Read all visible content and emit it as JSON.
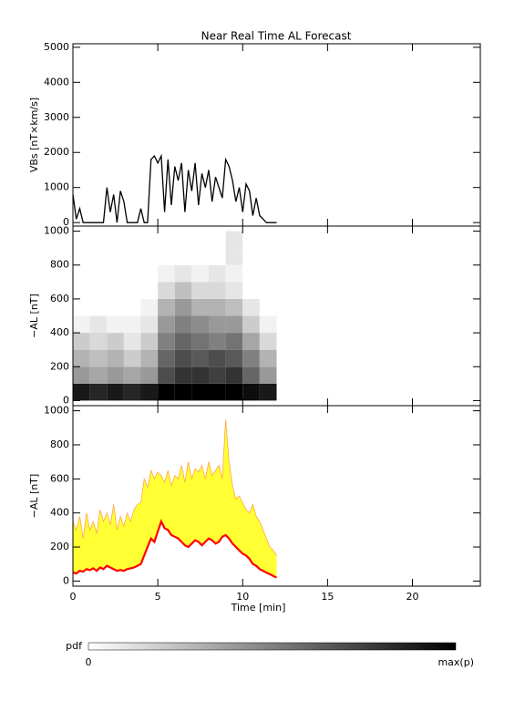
{
  "title": "Near Real Time AL Forecast",
  "chart_data": [
    {
      "type": "line",
      "ylabel": "VBs [nT×km/s]",
      "xlim": [
        0,
        24
      ],
      "xticks": [
        0,
        5,
        10,
        15,
        20
      ],
      "ylim": [
        -100,
        5100
      ],
      "yticks": [
        0,
        1000,
        2000,
        3000,
        4000,
        5000
      ],
      "x": [
        0,
        0.2,
        0.4,
        0.6,
        0.8,
        1,
        1.2,
        1.4,
        1.6,
        1.8,
        2,
        2.2,
        2.4,
        2.6,
        2.8,
        3,
        3.2,
        3.4,
        3.6,
        3.8,
        4,
        4.2,
        4.4,
        4.6,
        4.8,
        5,
        5.2,
        5.4,
        5.6,
        5.8,
        6,
        6.2,
        6.4,
        6.6,
        6.8,
        7,
        7.2,
        7.4,
        7.6,
        7.8,
        8,
        8.2,
        8.4,
        8.6,
        8.8,
        9,
        9.2,
        9.4,
        9.6,
        9.8,
        10,
        10.2,
        10.4,
        10.6,
        10.8,
        11,
        11.2,
        11.4,
        11.6,
        11.8,
        12
      ],
      "series": [
        {
          "color": "#000000",
          "values": [
            800,
            100,
            400,
            0,
            0,
            0,
            0,
            0,
            0,
            0,
            1000,
            300,
            800,
            0,
            900,
            600,
            0,
            0,
            0,
            0,
            400,
            0,
            0,
            1800,
            1900,
            1700,
            1900,
            300,
            1800,
            500,
            1600,
            1200,
            1700,
            300,
            1500,
            900,
            1700,
            500,
            1400,
            1000,
            1500,
            600,
            1300,
            1000,
            700,
            1800,
            1600,
            1200,
            600,
            1000,
            300,
            1100,
            900,
            200,
            700,
            200,
            100,
            0,
            0,
            0,
            0
          ]
        }
      ]
    },
    {
      "type": "heatmap",
      "ylabel": "−AL [nT]",
      "xlim": [
        0,
        24
      ],
      "xticks": [
        0,
        5,
        10,
        15,
        20
      ],
      "ylim": [
        -30,
        1030
      ],
      "yticks": [
        0,
        200,
        400,
        600,
        800,
        1000
      ],
      "bins_x": [
        0,
        1,
        2,
        3,
        4,
        5,
        6,
        7,
        8,
        9,
        10,
        11,
        12
      ],
      "bins_y": [
        0,
        100,
        200,
        300,
        400,
        500,
        600,
        700,
        800,
        900,
        1000
      ],
      "z": [
        [
          0.9,
          0.85,
          0.9,
          0.85,
          0.9,
          1,
          1,
          1,
          1,
          1,
          0.95,
          0.9
        ],
        [
          0.4,
          0.35,
          0.4,
          0.35,
          0.4,
          0.7,
          0.8,
          0.8,
          0.75,
          0.8,
          0.6,
          0.4
        ],
        [
          0.3,
          0.25,
          0.3,
          0.2,
          0.3,
          0.6,
          0.7,
          0.65,
          0.7,
          0.65,
          0.5,
          0.3
        ],
        [
          0.2,
          0.15,
          0.2,
          0.1,
          0.2,
          0.5,
          0.6,
          0.55,
          0.5,
          0.55,
          0.35,
          0.15
        ],
        [
          0.05,
          0.1,
          0.05,
          0.05,
          0.1,
          0.4,
          0.5,
          0.45,
          0.4,
          0.4,
          0.2,
          0.05
        ],
        [
          0,
          0,
          0,
          0,
          0.05,
          0.3,
          0.4,
          0.3,
          0.3,
          0.25,
          0.1,
          0
        ],
        [
          0,
          0,
          0,
          0,
          0,
          0.15,
          0.25,
          0.15,
          0.15,
          0.1,
          0,
          0
        ],
        [
          0,
          0,
          0,
          0,
          0,
          0.05,
          0.1,
          0.05,
          0.1,
          0.05,
          0,
          0
        ],
        [
          0,
          0,
          0,
          0,
          0,
          0,
          0,
          0,
          0,
          0.1,
          0,
          0
        ],
        [
          0,
          0,
          0,
          0,
          0,
          0,
          0,
          0,
          0,
          0.1,
          0,
          0
        ]
      ]
    },
    {
      "type": "band",
      "ylabel": "−AL [nT]",
      "xlabel": "Time [min]",
      "xlim": [
        0,
        24
      ],
      "xticks": [
        0,
        5,
        10,
        15,
        20
      ],
      "ylim": [
        -30,
        1030
      ],
      "yticks": [
        0,
        200,
        400,
        600,
        800,
        1000
      ],
      "x": [
        0,
        0.2,
        0.4,
        0.6,
        0.8,
        1,
        1.2,
        1.4,
        1.6,
        1.8,
        2,
        2.2,
        2.4,
        2.6,
        2.8,
        3,
        3.2,
        3.4,
        3.6,
        3.8,
        4,
        4.2,
        4.4,
        4.6,
        4.8,
        5,
        5.2,
        5.4,
        5.6,
        5.8,
        6,
        6.2,
        6.4,
        6.6,
        6.8,
        7,
        7.2,
        7.4,
        7.6,
        7.8,
        8,
        8.2,
        8.4,
        8.6,
        8.8,
        9,
        9.2,
        9.4,
        9.6,
        9.8,
        10,
        10.2,
        10.4,
        10.6,
        10.8,
        11,
        11.2,
        11.4,
        11.6,
        11.8,
        12
      ],
      "band_color": "#ffff33",
      "upper_color": "#ffa64d",
      "lower_color": "#ff0000",
      "upper": [
        350,
        300,
        380,
        250,
        400,
        300,
        350,
        280,
        420,
        350,
        400,
        330,
        450,
        300,
        380,
        320,
        400,
        350,
        420,
        450,
        460,
        600,
        550,
        650,
        600,
        640,
        620,
        580,
        650,
        560,
        620,
        600,
        680,
        580,
        700,
        600,
        660,
        640,
        680,
        600,
        700,
        620,
        650,
        680,
        600,
        950,
        700,
        560,
        480,
        500,
        460,
        420,
        400,
        450,
        380,
        350,
        300,
        250,
        200,
        180,
        150
      ],
      "lower": [
        50,
        45,
        60,
        55,
        70,
        65,
        75,
        60,
        80,
        70,
        90,
        80,
        70,
        60,
        65,
        60,
        70,
        75,
        80,
        90,
        100,
        150,
        200,
        250,
        230,
        290,
        350,
        310,
        300,
        270,
        260,
        250,
        230,
        210,
        200,
        220,
        240,
        230,
        210,
        230,
        250,
        240,
        220,
        230,
        260,
        270,
        250,
        220,
        200,
        180,
        160,
        150,
        130,
        100,
        90,
        70,
        60,
        50,
        40,
        30,
        20
      ]
    }
  ],
  "colorbar": {
    "label": "pdf",
    "min_label": "0",
    "max_label": "max(p)"
  }
}
